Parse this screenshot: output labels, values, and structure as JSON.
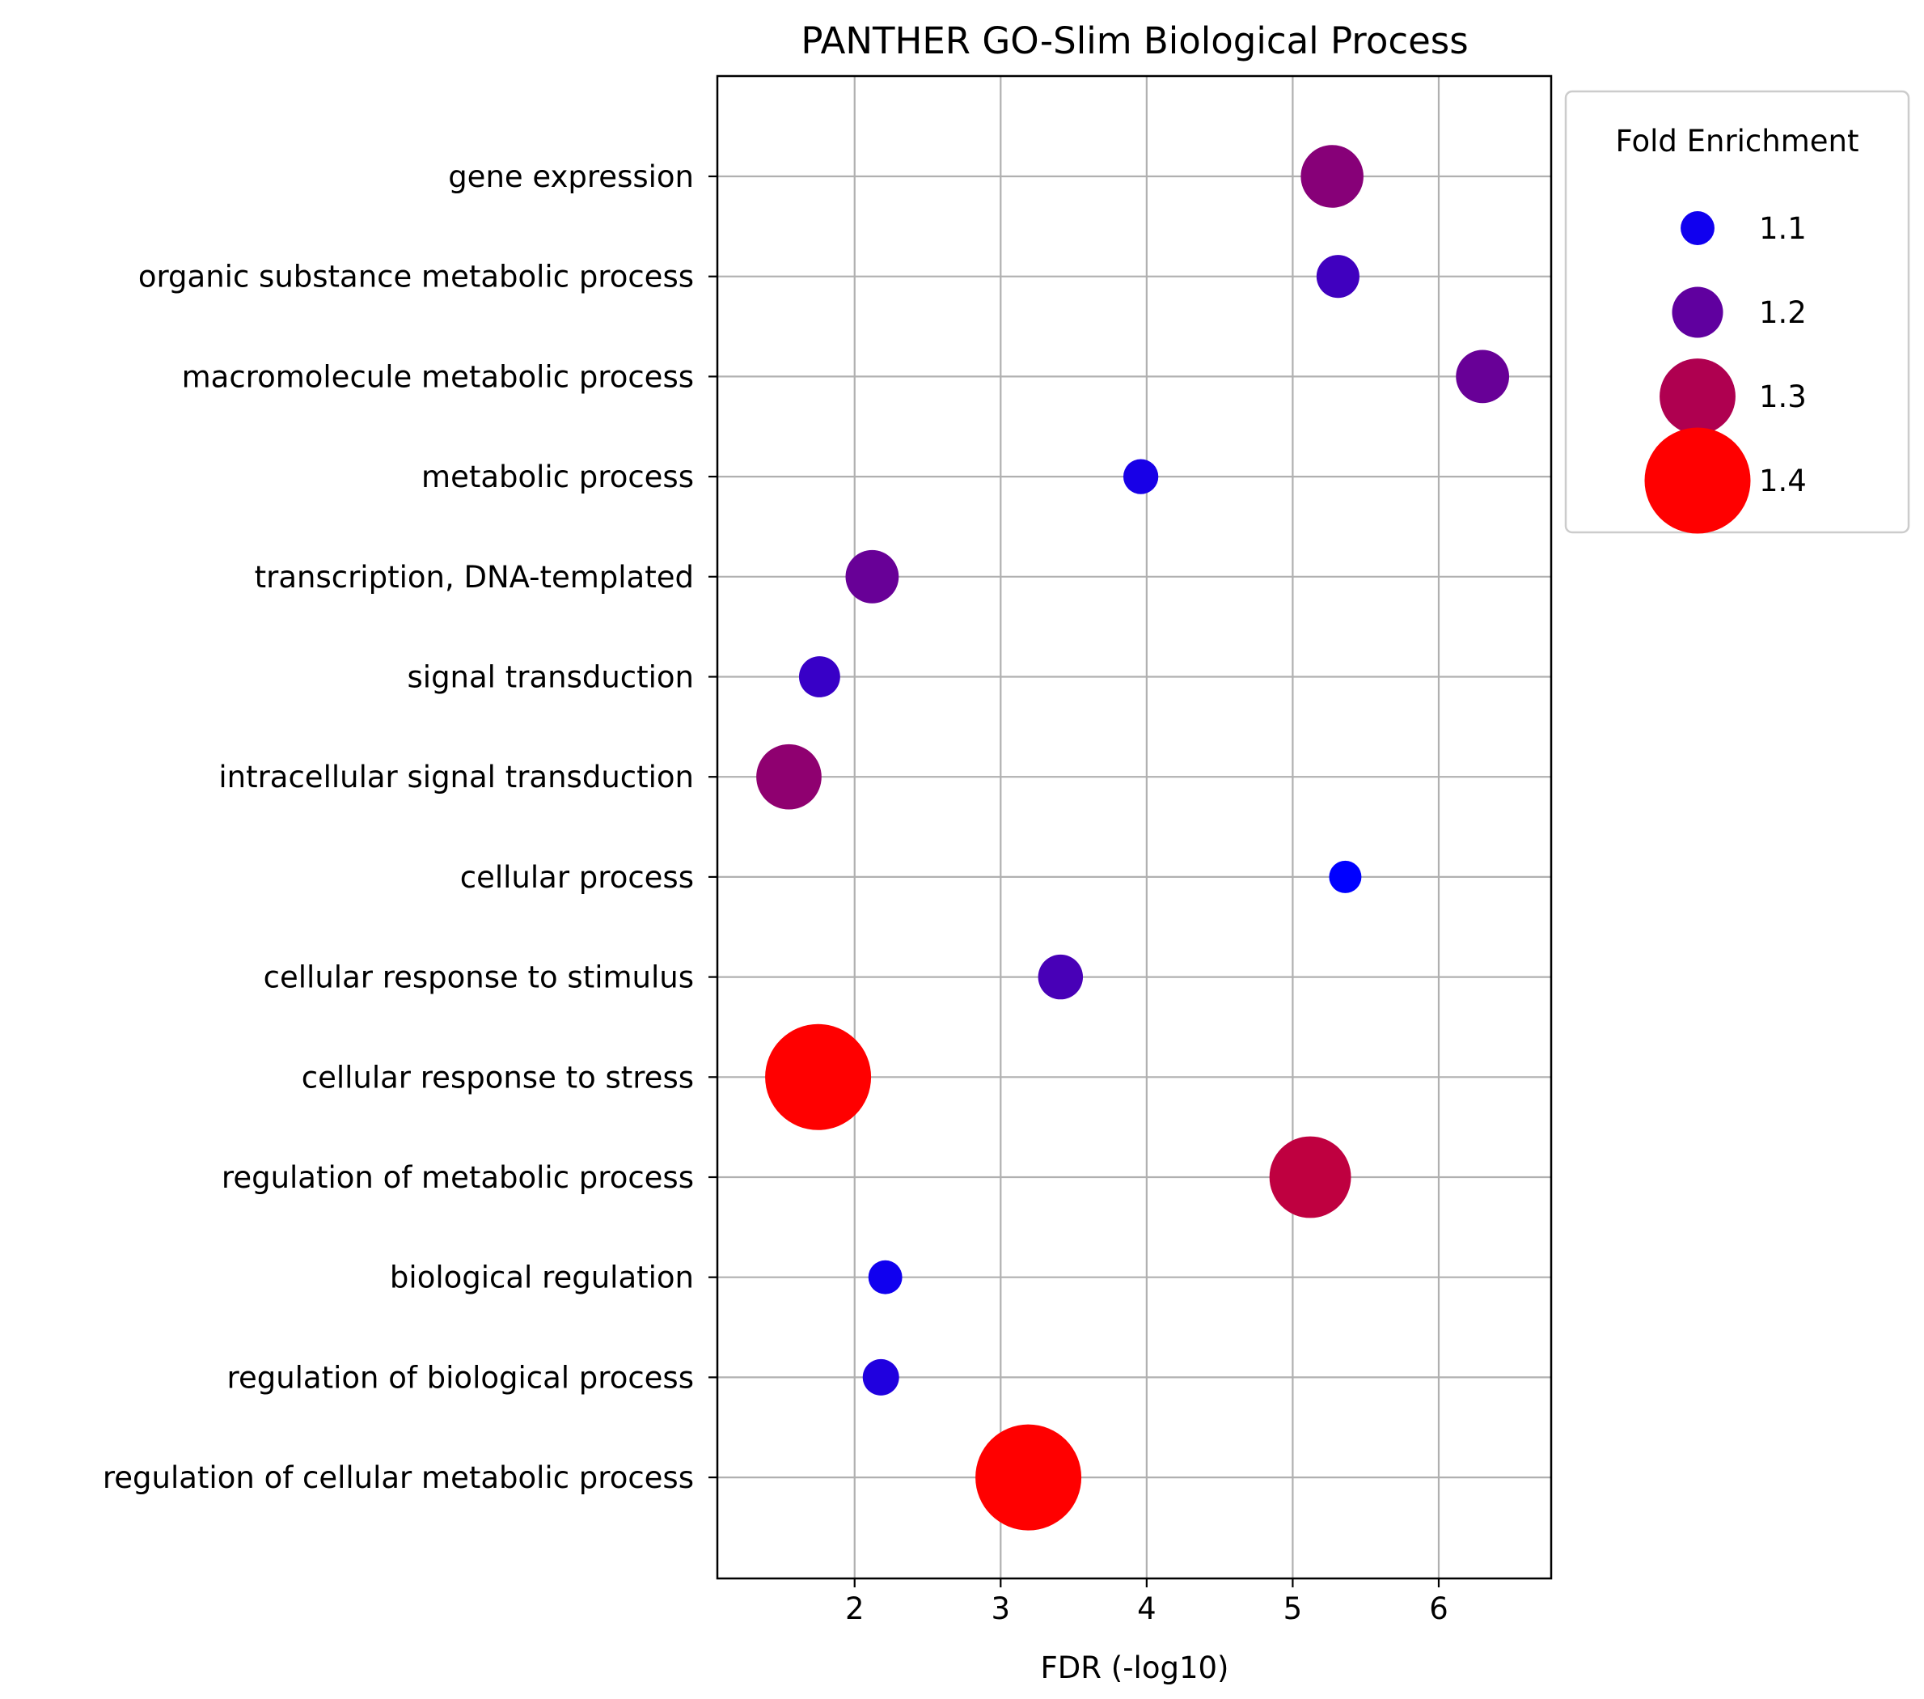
{
  "chart_data": {
    "type": "scatter",
    "title": "PANTHER GO-Slim Biological Process",
    "xlabel": "FDR (-log10)",
    "ylabel": "",
    "xlim": [
      1.06,
      6.77
    ],
    "xticks": [
      2,
      3,
      4,
      5,
      6
    ],
    "grid": true,
    "categories": [
      "gene expression",
      "organic substance metabolic process",
      "macromolecule metabolic process",
      "metabolic process",
      "transcription, DNA-templated",
      "signal transduction",
      "intracellular signal transduction",
      "cellular process",
      "cellular response to stimulus",
      "cellular response to stress",
      "regulation of metabolic process",
      "biological regulation",
      "regulation of biological process",
      "regulation of cellular metabolic process"
    ],
    "points": [
      {
        "category": "gene expression",
        "x": 5.27,
        "fold_enrichment": 1.25
      },
      {
        "category": "organic substance metabolic process",
        "x": 5.31,
        "fold_enrichment": 1.16
      },
      {
        "category": "macromolecule metabolic process",
        "x": 6.3,
        "fold_enrichment": 1.21
      },
      {
        "category": "metabolic process",
        "x": 3.96,
        "fold_enrichment": 1.11
      },
      {
        "category": "transcription, DNA-templated",
        "x": 2.12,
        "fold_enrichment": 1.21
      },
      {
        "category": "signal transduction",
        "x": 1.76,
        "fold_enrichment": 1.15
      },
      {
        "category": "intracellular signal transduction",
        "x": 1.55,
        "fold_enrichment": 1.26
      },
      {
        "category": "cellular process",
        "x": 5.36,
        "fold_enrichment": 1.07
      },
      {
        "category": "cellular response to stimulus",
        "x": 3.41,
        "fold_enrichment": 1.17
      },
      {
        "category": "cellular response to stress",
        "x": 1.75,
        "fold_enrichment": 1.42
      },
      {
        "category": "regulation of metabolic process",
        "x": 5.12,
        "fold_enrichment": 1.32
      },
      {
        "category": "biological regulation",
        "x": 2.21,
        "fold_enrichment": 1.1
      },
      {
        "category": "regulation of biological process",
        "x": 2.18,
        "fold_enrichment": 1.12
      },
      {
        "category": "regulation of cellular metabolic process",
        "x": 3.19,
        "fold_enrichment": 1.44
      }
    ],
    "legend": {
      "title": "Fold Enrichment",
      "placement": "outside-right-top",
      "entries": [
        {
          "label": "1.1",
          "value": 1.1
        },
        {
          "label": "1.2",
          "value": 1.2
        },
        {
          "label": "1.3",
          "value": 1.3
        },
        {
          "label": "1.4",
          "value": 1.4
        }
      ]
    },
    "color_scale": {
      "low_value": 1.08,
      "high_value": 1.4,
      "low_color": "#0000ff",
      "high_color": "#ff0000"
    }
  }
}
